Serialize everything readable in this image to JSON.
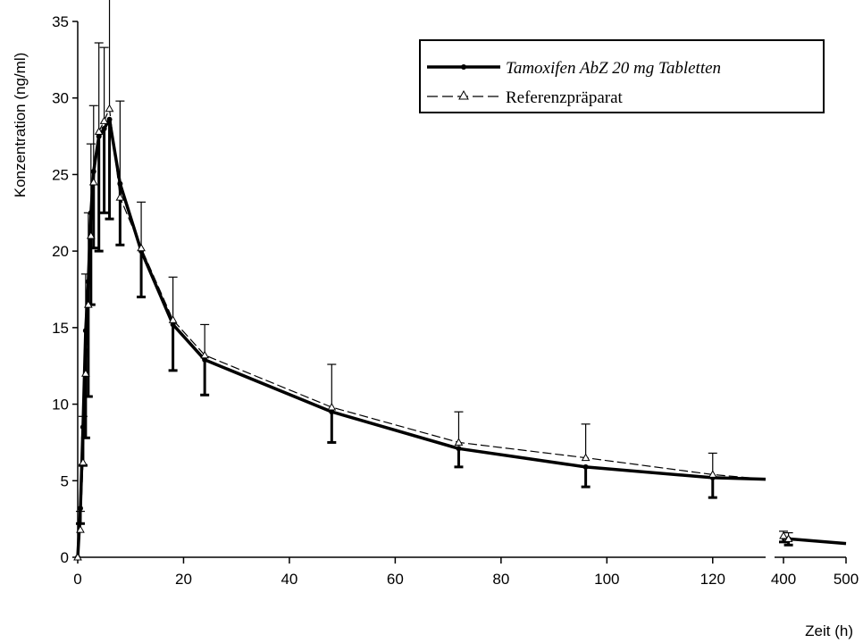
{
  "chart_data": {
    "type": "line",
    "title": "",
    "ylabel": "Konzentration (ng/ml)",
    "xlabel": "Zeit (h)",
    "ylim": [
      0,
      35
    ],
    "y_ticks": [
      "0",
      "5",
      "10",
      "15",
      "20",
      "25",
      "30",
      "35"
    ],
    "x_axis_segments": [
      {
        "xlim": [
          0,
          130
        ],
        "ticks": [
          "0",
          "20",
          "40",
          "60",
          "80",
          "100",
          "120"
        ],
        "tick_values": [
          0,
          20,
          40,
          60,
          80,
          100,
          120
        ]
      },
      {
        "xlim": [
          390,
          500
        ],
        "ticks": [
          "400",
          "500"
        ],
        "tick_values": [
          400,
          500
        ]
      }
    ],
    "legend_position": "top-right",
    "grid": false,
    "series": [
      {
        "name": "Tamoxifen AbZ 20 mg Tabletten",
        "color": "#000000",
        "style": "solid-thick",
        "marker": "filled-circle",
        "x": [
          0,
          0.5,
          1,
          1.5,
          2,
          2.5,
          3,
          4,
          5,
          6,
          8,
          12,
          18,
          24,
          48,
          72,
          96,
          120,
          130,
          400,
          408,
          500
        ],
        "y": [
          0,
          3.2,
          8.5,
          14.8,
          18.0,
          22.5,
          25.2,
          27.5,
          28.0,
          28.6,
          24.4,
          20.0,
          15.2,
          12.9,
          9.5,
          7.1,
          5.9,
          5.2,
          5.1,
          1.3,
          1.2,
          0.9
        ],
        "err": [
          0,
          1.0,
          2.5,
          7.0,
          7.5,
          6.0,
          5.0,
          7.5,
          5.5,
          6.5,
          4.0,
          3.0,
          3.0,
          2.3,
          2.0,
          1.2,
          1.3,
          1.3,
          0,
          0.3,
          0.4,
          0
        ]
      },
      {
        "name": "Referenzpräparat",
        "color": "#000000",
        "style": "dashed-thin",
        "marker": "open-triangle",
        "x": [
          0,
          0.5,
          1,
          1.5,
          2,
          2.5,
          3,
          4,
          5,
          6,
          8,
          12,
          18,
          24,
          48,
          72,
          96,
          120,
          130,
          400,
          408,
          500
        ],
        "y": [
          0,
          1.8,
          6.2,
          12.0,
          16.5,
          21.0,
          24.5,
          27.8,
          28.5,
          29.3,
          23.5,
          20.2,
          15.5,
          13.2,
          9.8,
          7.5,
          6.5,
          5.4,
          5.1,
          1.4,
          1.2,
          0.9
        ],
        "err": [
          0,
          1.2,
          3.0,
          6.5,
          6.0,
          6.0,
          5.0,
          5.8,
          4.8,
          7.5,
          6.3,
          3.0,
          2.8,
          2.0,
          2.8,
          2.0,
          2.2,
          1.4,
          0,
          0.3,
          0.4,
          0
        ]
      }
    ]
  }
}
